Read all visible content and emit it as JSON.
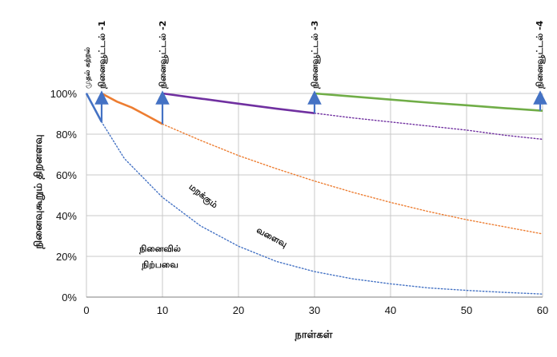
{
  "chart_data": {
    "type": "line",
    "xlabel": "நாள்கள்",
    "ylabel": "நினைவுகூறும் திறனளவு",
    "xlim": [
      0,
      60
    ],
    "ylim": [
      0,
      100
    ],
    "xticks": [
      "0",
      "10",
      "20",
      "30",
      "40",
      "50",
      "60"
    ],
    "yticks": [
      "0%",
      "20%",
      "40%",
      "60%",
      "80%",
      "100%"
    ],
    "grid": true,
    "review_labels": [
      {
        "day": 0,
        "text": "முதல் கற்றல்"
      },
      {
        "day": 2,
        "text": "நினைவூட்டல் -1"
      },
      {
        "day": 10,
        "text": "நினைவூட்டல் -2"
      },
      {
        "day": 30,
        "text": "நினைவூட்டல் -3"
      },
      {
        "day": 60,
        "text": "நினைவூட்டல் -4"
      }
    ],
    "annotations": {
      "forgetting_curve": "மறக்கும்",
      "curve_word": "வளைவு",
      "retained_1": "நினைவில்",
      "retained_2": "நிற்பவை"
    },
    "series": [
      {
        "color": "#4472c4",
        "style": "solid",
        "x": [
          0,
          2
        ],
        "y": [
          100,
          86
        ]
      },
      {
        "color": "#4472c4",
        "style": "dotted",
        "x": [
          0,
          2,
          5,
          10,
          15,
          20,
          25,
          30,
          35,
          40,
          45,
          50,
          55,
          60
        ],
        "y": [
          100,
          86,
          68,
          49,
          35,
          25,
          17.5,
          12.5,
          9,
          6.5,
          4.5,
          3.3,
          2.3,
          1.5
        ]
      },
      {
        "color": "#ed7d31",
        "style": "solid",
        "x": [
          2,
          4,
          6,
          8,
          10
        ],
        "y": [
          100,
          96,
          93,
          89,
          85
        ]
      },
      {
        "color": "#ed7d31",
        "style": "dotted",
        "x": [
          10,
          15,
          20,
          25,
          30,
          35,
          40,
          45,
          50,
          55,
          60
        ],
        "y": [
          85,
          77,
          69.5,
          63,
          57,
          51.5,
          46.5,
          42,
          38,
          34.5,
          31
        ]
      },
      {
        "color": "#7030a0",
        "style": "solid",
        "x": [
          10,
          15,
          20,
          25,
          30
        ],
        "y": [
          100,
          97.5,
          95,
          92.5,
          90.3
        ]
      },
      {
        "color": "#7030a0",
        "style": "dotted",
        "x": [
          30,
          35,
          40,
          45,
          50,
          55,
          60
        ],
        "y": [
          90.3,
          88,
          86,
          84,
          82,
          79.5,
          77.5
        ]
      },
      {
        "color": "#70ad47",
        "style": "solid",
        "x": [
          30,
          35,
          40,
          45,
          50,
          55,
          60
        ],
        "y": [
          100,
          98.5,
          97,
          95.5,
          94.2,
          92.8,
          91.5
        ]
      }
    ],
    "review_arrows": [
      {
        "day": 2,
        "from": 86,
        "to": 100
      },
      {
        "day": 10,
        "from": 85,
        "to": 100
      },
      {
        "day": 30,
        "from": 90.3,
        "to": 100
      },
      {
        "day": 60,
        "from": 91.5,
        "to": 100
      }
    ]
  }
}
